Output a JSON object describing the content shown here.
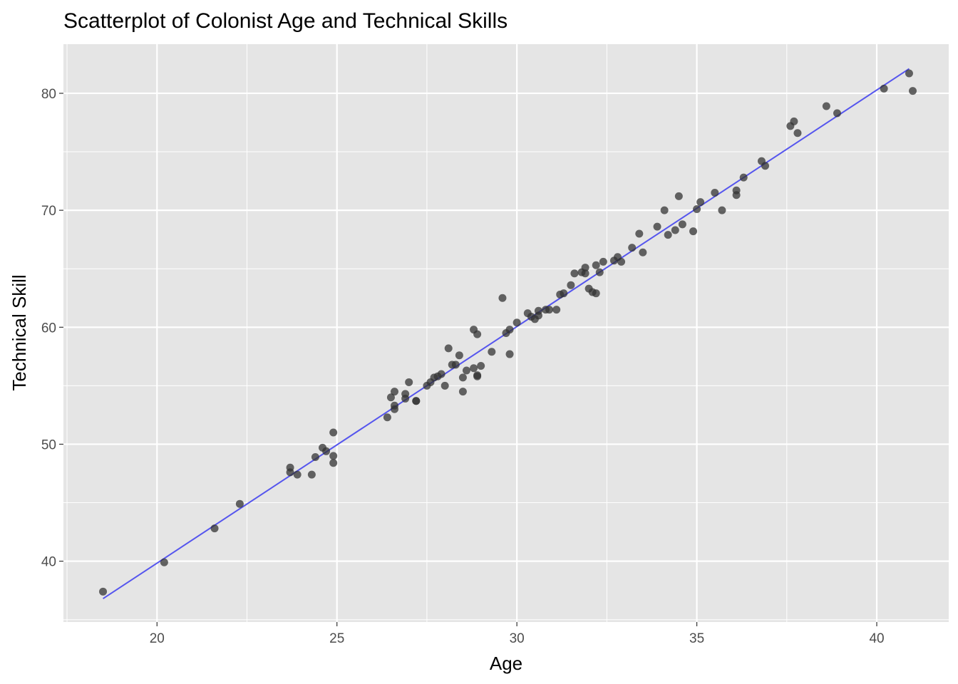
{
  "chart_data": {
    "type": "scatter",
    "title": "Scatterplot of Colonist Age and Technical Skills",
    "xlabel": "Age",
    "ylabel": "Technical Skill",
    "xlim": [
      17.4,
      42.0
    ],
    "ylim": [
      34.8,
      84.2
    ],
    "xticks": [
      20,
      25,
      30,
      35,
      40
    ],
    "yticks": [
      40,
      50,
      60,
      70,
      80
    ],
    "grid": true,
    "legend": "none",
    "colors": {
      "panel": "#e5e5e5",
      "grid": "#ffffff",
      "point": "#333333",
      "fit_line": "#5555ee"
    },
    "fit_line": {
      "x": [
        18.5,
        40.9
      ],
      "y": [
        36.8,
        82.1
      ]
    },
    "points": [
      {
        "x": 18.5,
        "y": 37.4
      },
      {
        "x": 20.2,
        "y": 39.9
      },
      {
        "x": 21.6,
        "y": 42.8
      },
      {
        "x": 22.3,
        "y": 44.9
      },
      {
        "x": 23.7,
        "y": 48.0
      },
      {
        "x": 23.7,
        "y": 47.6
      },
      {
        "x": 23.9,
        "y": 47.4
      },
      {
        "x": 24.3,
        "y": 47.4
      },
      {
        "x": 24.4,
        "y": 48.9
      },
      {
        "x": 24.6,
        "y": 49.7
      },
      {
        "x": 24.7,
        "y": 49.4
      },
      {
        "x": 24.9,
        "y": 51.0
      },
      {
        "x": 24.9,
        "y": 49.0
      },
      {
        "x": 24.9,
        "y": 48.4
      },
      {
        "x": 26.4,
        "y": 52.3
      },
      {
        "x": 26.5,
        "y": 54.0
      },
      {
        "x": 26.6,
        "y": 53.3
      },
      {
        "x": 26.6,
        "y": 53.0
      },
      {
        "x": 26.6,
        "y": 54.5
      },
      {
        "x": 26.9,
        "y": 54.3
      },
      {
        "x": 26.9,
        "y": 53.9
      },
      {
        "x": 27.0,
        "y": 55.3
      },
      {
        "x": 27.2,
        "y": 53.7
      },
      {
        "x": 27.2,
        "y": 53.7
      },
      {
        "x": 27.5,
        "y": 55.0
      },
      {
        "x": 27.6,
        "y": 55.3
      },
      {
        "x": 27.7,
        "y": 55.7
      },
      {
        "x": 27.8,
        "y": 55.8
      },
      {
        "x": 27.9,
        "y": 56.0
      },
      {
        "x": 28.0,
        "y": 55.0
      },
      {
        "x": 28.1,
        "y": 58.2
      },
      {
        "x": 28.2,
        "y": 56.8
      },
      {
        "x": 28.3,
        "y": 56.8
      },
      {
        "x": 28.4,
        "y": 57.6
      },
      {
        "x": 28.5,
        "y": 54.5
      },
      {
        "x": 28.5,
        "y": 55.7
      },
      {
        "x": 28.6,
        "y": 56.3
      },
      {
        "x": 28.8,
        "y": 59.8
      },
      {
        "x": 28.8,
        "y": 56.5
      },
      {
        "x": 28.9,
        "y": 59.4
      },
      {
        "x": 28.9,
        "y": 55.9
      },
      {
        "x": 28.9,
        "y": 55.8
      },
      {
        "x": 29.0,
        "y": 56.7
      },
      {
        "x": 29.3,
        "y": 57.9
      },
      {
        "x": 29.6,
        "y": 62.5
      },
      {
        "x": 29.7,
        "y": 59.5
      },
      {
        "x": 29.8,
        "y": 59.8
      },
      {
        "x": 29.8,
        "y": 57.7
      },
      {
        "x": 30.0,
        "y": 60.4
      },
      {
        "x": 30.3,
        "y": 61.2
      },
      {
        "x": 30.4,
        "y": 60.9
      },
      {
        "x": 30.5,
        "y": 60.7
      },
      {
        "x": 30.6,
        "y": 61.0
      },
      {
        "x": 30.6,
        "y": 61.4
      },
      {
        "x": 30.8,
        "y": 61.5
      },
      {
        "x": 30.9,
        "y": 61.5
      },
      {
        "x": 31.1,
        "y": 61.5
      },
      {
        "x": 31.2,
        "y": 62.8
      },
      {
        "x": 31.3,
        "y": 62.9
      },
      {
        "x": 31.5,
        "y": 63.6
      },
      {
        "x": 31.6,
        "y": 64.6
      },
      {
        "x": 31.8,
        "y": 64.7
      },
      {
        "x": 31.9,
        "y": 64.6
      },
      {
        "x": 31.9,
        "y": 65.1
      },
      {
        "x": 32.0,
        "y": 63.3
      },
      {
        "x": 32.1,
        "y": 63.0
      },
      {
        "x": 32.2,
        "y": 65.3
      },
      {
        "x": 32.2,
        "y": 62.9
      },
      {
        "x": 32.3,
        "y": 64.7
      },
      {
        "x": 32.4,
        "y": 65.6
      },
      {
        "x": 32.7,
        "y": 65.7
      },
      {
        "x": 32.8,
        "y": 66.0
      },
      {
        "x": 32.9,
        "y": 65.6
      },
      {
        "x": 33.2,
        "y": 66.8
      },
      {
        "x": 33.4,
        "y": 68.0
      },
      {
        "x": 33.5,
        "y": 66.4
      },
      {
        "x": 33.9,
        "y": 68.6
      },
      {
        "x": 34.1,
        "y": 70.0
      },
      {
        "x": 34.2,
        "y": 67.9
      },
      {
        "x": 34.4,
        "y": 68.3
      },
      {
        "x": 34.5,
        "y": 71.2
      },
      {
        "x": 34.6,
        "y": 68.8
      },
      {
        "x": 34.9,
        "y": 68.2
      },
      {
        "x": 35.0,
        "y": 70.1
      },
      {
        "x": 35.1,
        "y": 70.7
      },
      {
        "x": 35.5,
        "y": 71.5
      },
      {
        "x": 35.7,
        "y": 70.0
      },
      {
        "x": 36.1,
        "y": 71.7
      },
      {
        "x": 36.1,
        "y": 71.3
      },
      {
        "x": 36.3,
        "y": 72.8
      },
      {
        "x": 36.8,
        "y": 74.2
      },
      {
        "x": 36.9,
        "y": 73.8
      },
      {
        "x": 37.6,
        "y": 77.2
      },
      {
        "x": 37.7,
        "y": 77.6
      },
      {
        "x": 37.8,
        "y": 76.6
      },
      {
        "x": 38.6,
        "y": 78.9
      },
      {
        "x": 38.9,
        "y": 78.3
      },
      {
        "x": 40.2,
        "y": 80.4
      },
      {
        "x": 40.9,
        "y": 81.7
      },
      {
        "x": 41.0,
        "y": 80.2
      }
    ]
  }
}
